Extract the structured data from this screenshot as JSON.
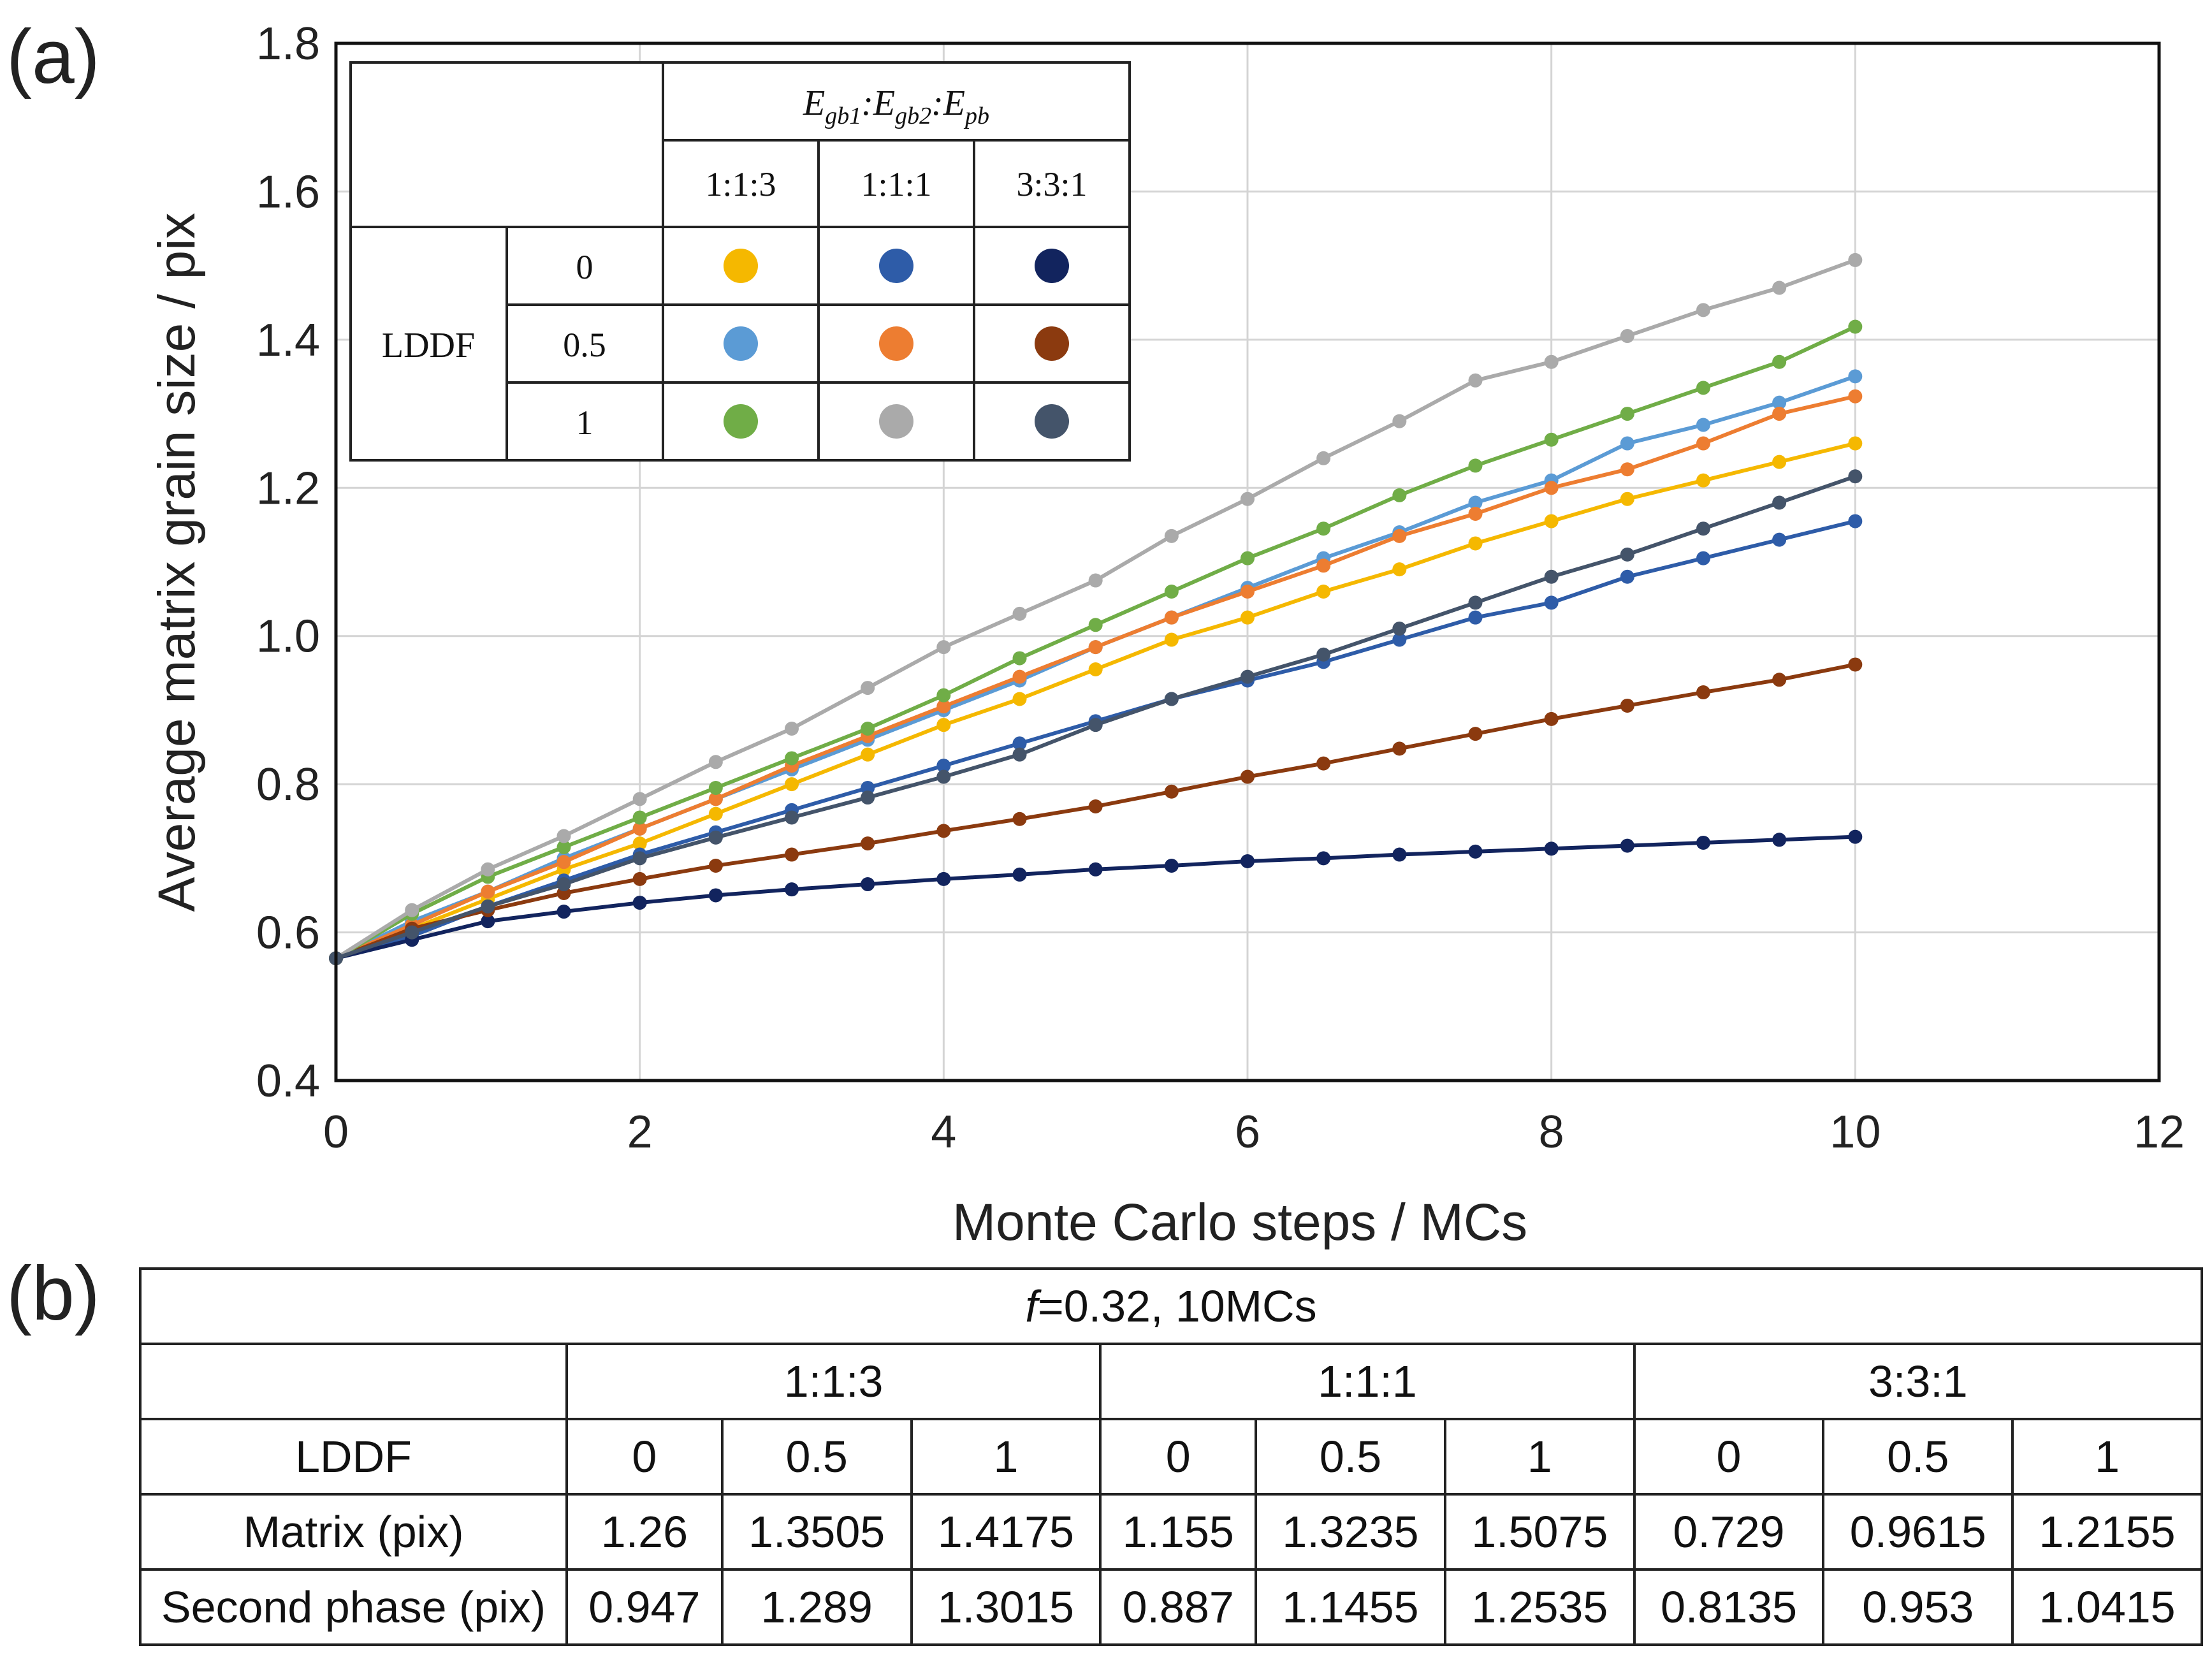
{
  "panel_a_label": "(a)",
  "panel_b_label": "(b)",
  "chart_data": {
    "type": "line",
    "xlabel": "Monte Carlo steps / MCs",
    "ylabel": "Average matrix grain size / pix",
    "xlim": [
      0,
      12
    ],
    "ylim": [
      0.4,
      1.8
    ],
    "xticks": [
      "0",
      "2",
      "4",
      "6",
      "8",
      "10",
      "12"
    ],
    "yticks": [
      "0.4",
      "0.6",
      "0.8",
      "1.0",
      "1.2",
      "1.4",
      "1.6",
      "1.8"
    ],
    "grid": true,
    "x": [
      0,
      0.5,
      1,
      1.5,
      2,
      2.5,
      3,
      3.5,
      4,
      4.5,
      5,
      5.5,
      6,
      6.5,
      7,
      7.5,
      8,
      8.5,
      9,
      9.5,
      10
    ],
    "series": [
      {
        "ratio": "1:1:3",
        "lddf": "0",
        "color": "#f5b800",
        "values": [
          0.565,
          0.605,
          0.645,
          0.685,
          0.72,
          0.76,
          0.8,
          0.84,
          0.88,
          0.915,
          0.955,
          0.995,
          1.025,
          1.06,
          1.09,
          1.125,
          1.155,
          1.185,
          1.21,
          1.235,
          1.26
        ]
      },
      {
        "ratio": "1:1:1",
        "lddf": "0",
        "color": "#2e5ca8",
        "values": [
          0.565,
          0.595,
          0.635,
          0.67,
          0.705,
          0.735,
          0.765,
          0.795,
          0.825,
          0.855,
          0.885,
          0.915,
          0.94,
          0.965,
          0.995,
          1.025,
          1.045,
          1.08,
          1.105,
          1.13,
          1.155
        ]
      },
      {
        "ratio": "3:3:1",
        "lddf": "0",
        "color": "#12245e",
        "values": [
          0.565,
          0.59,
          0.615,
          0.628,
          0.64,
          0.65,
          0.658,
          0.665,
          0.672,
          0.678,
          0.685,
          0.69,
          0.696,
          0.7,
          0.705,
          0.709,
          0.713,
          0.717,
          0.721,
          0.725,
          0.729
        ]
      },
      {
        "ratio": "1:1:3",
        "lddf": "0.5",
        "color": "#5b9bd5",
        "values": [
          0.565,
          0.615,
          0.655,
          0.7,
          0.74,
          0.78,
          0.82,
          0.86,
          0.9,
          0.94,
          0.985,
          1.025,
          1.065,
          1.105,
          1.14,
          1.18,
          1.21,
          1.26,
          1.285,
          1.315,
          1.3505
        ]
      },
      {
        "ratio": "1:1:1",
        "lddf": "0.5",
        "color": "#ed7d31",
        "values": [
          0.565,
          0.61,
          0.655,
          0.695,
          0.74,
          0.78,
          0.825,
          0.865,
          0.905,
          0.945,
          0.985,
          1.025,
          1.06,
          1.095,
          1.135,
          1.165,
          1.2,
          1.225,
          1.26,
          1.3,
          1.3235
        ]
      },
      {
        "ratio": "3:3:1",
        "lddf": "0.5",
        "color": "#8b3a0f",
        "values": [
          0.565,
          0.605,
          0.63,
          0.653,
          0.672,
          0.69,
          0.705,
          0.72,
          0.737,
          0.753,
          0.77,
          0.79,
          0.81,
          0.828,
          0.848,
          0.868,
          0.888,
          0.906,
          0.924,
          0.941,
          0.9615
        ]
      },
      {
        "ratio": "1:1:3",
        "lddf": "1",
        "color": "#70ad47",
        "values": [
          0.565,
          0.625,
          0.675,
          0.715,
          0.755,
          0.795,
          0.835,
          0.875,
          0.92,
          0.97,
          1.015,
          1.06,
          1.105,
          1.145,
          1.19,
          1.23,
          1.265,
          1.3,
          1.335,
          1.37,
          1.4175
        ]
      },
      {
        "ratio": "1:1:1",
        "lddf": "1",
        "color": "#aaaaaa",
        "values": [
          0.565,
          0.63,
          0.685,
          0.73,
          0.78,
          0.83,
          0.875,
          0.93,
          0.985,
          1.03,
          1.075,
          1.135,
          1.185,
          1.24,
          1.29,
          1.345,
          1.37,
          1.405,
          1.44,
          1.47,
          1.5075
        ]
      },
      {
        "ratio": "3:3:1",
        "lddf": "1",
        "color": "#44546a",
        "values": [
          0.565,
          0.6,
          0.635,
          0.665,
          0.7,
          0.728,
          0.755,
          0.782,
          0.81,
          0.84,
          0.88,
          0.915,
          0.945,
          0.975,
          1.01,
          1.045,
          1.08,
          1.11,
          1.145,
          1.18,
          1.2155
        ]
      }
    ]
  },
  "legend": {
    "header": "E_gb1:E_gb2:E_pb",
    "row_label": "LDDF",
    "columns": [
      "1:1:3",
      "1:1:1",
      "3:3:1"
    ],
    "rows": [
      "0",
      "0.5",
      "1"
    ],
    "colors": [
      [
        "#f5b800",
        "#2e5ca8",
        "#12245e"
      ],
      [
        "#5b9bd5",
        "#ed7d31",
        "#8b3a0f"
      ],
      [
        "#70ad47",
        "#aaaaaa",
        "#44546a"
      ]
    ]
  },
  "table_b": {
    "title_italic": "f",
    "title_rest": "=0.32, 10MCs",
    "groups": [
      "1:1:3",
      "1:1:1",
      "3:3:1"
    ],
    "lddf_label": "LDDF",
    "lddf_values": [
      "0",
      "0.5",
      "1",
      "0",
      "0.5",
      "1",
      "0",
      "0.5",
      "1"
    ],
    "rows": [
      {
        "label": "Matrix (pix)",
        "values": [
          "1.26",
          "1.3505",
          "1.4175",
          "1.155",
          "1.3235",
          "1.5075",
          "0.729",
          "0.9615",
          "1.2155"
        ]
      },
      {
        "label": "Second phase (pix)",
        "values": [
          "0.947",
          "1.289",
          "1.3015",
          "0.887",
          "1.1455",
          "1.2535",
          "0.8135",
          "0.953",
          "1.0415"
        ]
      }
    ]
  }
}
